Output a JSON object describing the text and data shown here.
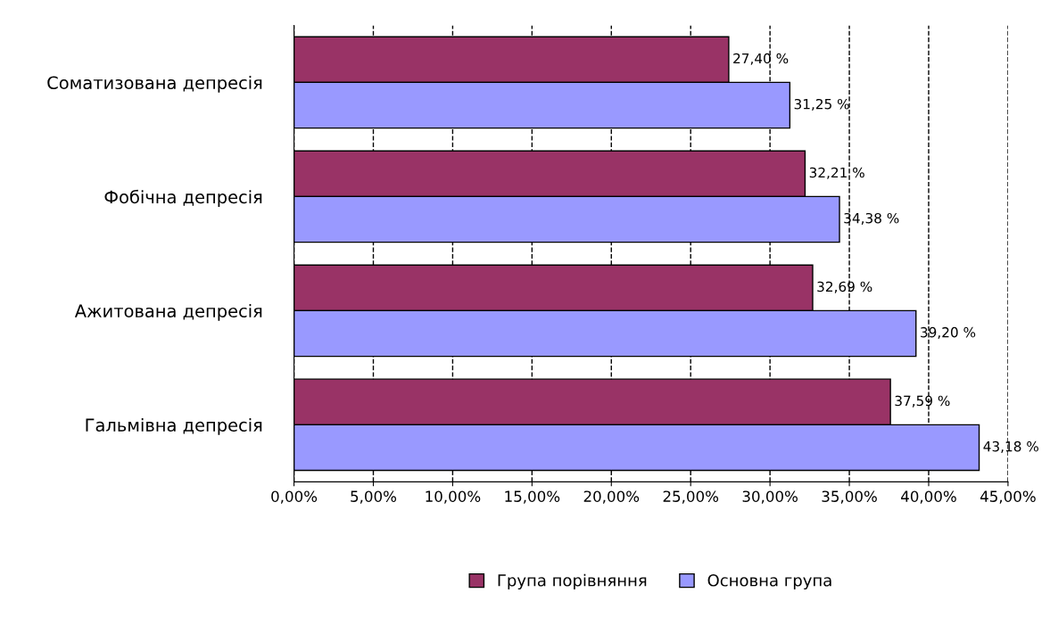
{
  "chart_data": {
    "type": "bar",
    "orientation": "horizontal",
    "categories": [
      "Соматизована депресія",
      "Фобічна депресія",
      "Ажитована депресія",
      "Гальмівна депресія"
    ],
    "series": [
      {
        "name": "Група порівняння",
        "color": "#993366",
        "values": [
          27.4,
          32.21,
          32.69,
          37.59
        ],
        "value_labels": [
          "27,40 %",
          "32,21 %",
          "32,69 %",
          "37,59 %"
        ]
      },
      {
        "name": "Основна група",
        "color": "#9999ff",
        "values": [
          31.25,
          34.38,
          39.2,
          43.18
        ],
        "value_labels": [
          "31,25 %",
          "34,38 %",
          "39,20 %",
          "43,18 %"
        ]
      }
    ],
    "xlim": [
      0,
      45
    ],
    "xticks": [
      {
        "value": 0,
        "label": "0,00%"
      },
      {
        "value": 5,
        "label": "5,00%"
      },
      {
        "value": 10,
        "label": "10,00%"
      },
      {
        "value": 15,
        "label": "15,00%"
      },
      {
        "value": 20,
        "label": "20,00%"
      },
      {
        "value": 25,
        "label": "25,00%"
      },
      {
        "value": 30,
        "label": "30,00%"
      },
      {
        "value": 35,
        "label": "35,00%"
      },
      {
        "value": 40,
        "label": "40,00%"
      },
      {
        "value": 45,
        "label": "45,00%"
      }
    ],
    "grid": "x",
    "legend": "bottom"
  }
}
